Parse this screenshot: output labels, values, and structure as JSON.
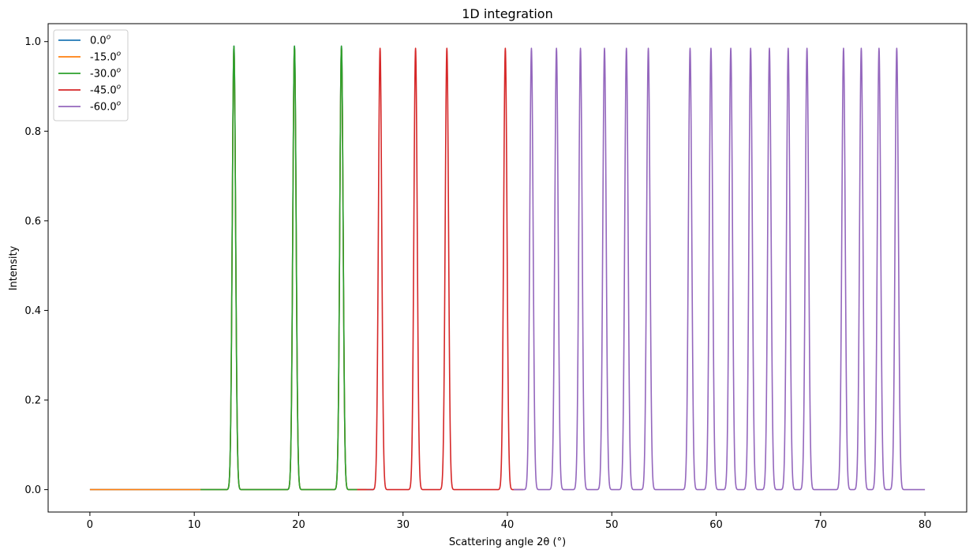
{
  "chart_data": {
    "type": "line",
    "title": "1D integration",
    "xlabel": "Scattering angle 2θ (°)",
    "ylabel": "Intensity",
    "xlim": [
      -4,
      84
    ],
    "ylim": [
      -0.05,
      1.04
    ],
    "xticks": [
      0,
      10,
      20,
      30,
      40,
      50,
      60,
      70,
      80
    ],
    "yticks": [
      0.0,
      0.2,
      0.4,
      0.6,
      0.8,
      1.0
    ],
    "xtick_labels": [
      "0",
      "10",
      "20",
      "30",
      "40",
      "50",
      "60",
      "70",
      "80"
    ],
    "ytick_labels": [
      "0.0",
      "0.2",
      "0.4",
      "0.6",
      "0.8",
      "1.0"
    ],
    "grid": false,
    "legend_position": "top-left",
    "peak_width": 0.16,
    "series": [
      {
        "name": "0.0",
        "color": "#1f77b4",
        "x_range": [
          0.0,
          27.2
        ],
        "peaks": [
          13.8,
          19.6,
          24.1,
          27.8
        ],
        "peak_heights": [
          0.99,
          0.99,
          0.99,
          0.99
        ]
      },
      {
        "name": "-15.0",
        "color": "#ff7f0e",
        "x_range": [
          0.0,
          26.5
        ],
        "peaks": [
          13.8,
          19.6,
          24.1
        ],
        "peak_heights": [
          0.985,
          0.985,
          0.985
        ]
      },
      {
        "name": "-30.0",
        "color": "#2ca02c",
        "x_range": [
          10.6,
          25.6
        ],
        "peaks": [
          13.8,
          19.6,
          24.1
        ],
        "peak_heights": [
          0.99,
          0.99,
          0.99
        ]
      },
      {
        "name": "-45.0",
        "color": "#d62728",
        "x_range": [
          25.6,
          41.5
        ],
        "peaks": [
          27.8,
          31.2,
          34.2,
          39.8
        ],
        "peak_heights": [
          0.985,
          0.985,
          0.985,
          0.985
        ]
      },
      {
        "name": "-60.0",
        "color": "#9467bd",
        "x_range": [
          40.6,
          80.0
        ],
        "peaks": [
          42.3,
          44.7,
          47.0,
          49.3,
          51.4,
          53.5,
          57.5,
          59.5,
          61.4,
          63.3,
          65.1,
          66.9,
          68.7,
          72.2,
          73.9,
          75.6,
          77.3
        ],
        "peak_heights": [
          0.985,
          0.985,
          0.985,
          0.985,
          0.985,
          0.985,
          0.985,
          0.985,
          0.985,
          0.985,
          0.985,
          0.985,
          0.985,
          0.985,
          0.985,
          0.985,
          0.985
        ]
      }
    ]
  }
}
